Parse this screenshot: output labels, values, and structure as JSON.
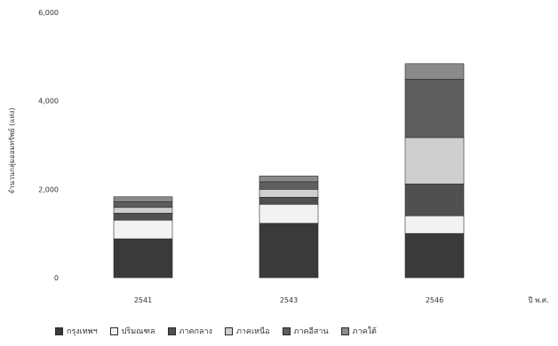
{
  "chart_data": {
    "type": "bar",
    "stacked": true,
    "categories": [
      "2541",
      "2543",
      "2546"
    ],
    "xlabel": "ปี พ.ศ.",
    "ylabel": "จำนวนกลุ่มออมทรัพย์ (แห่ง)",
    "ylim": [
      0,
      6000
    ],
    "yticks": [
      "0",
      "2,000",
      "4,000",
      "6,000"
    ],
    "grid": false,
    "legend_position": "bottom",
    "series": [
      {
        "name": "กรุงเทพฯ",
        "color": "#3a3a3a",
        "values": [
          880,
          1230,
          1000
        ]
      },
      {
        "name": "ปริมณฑล",
        "color": "#f2f2f2",
        "values": [
          420,
          430,
          400
        ]
      },
      {
        "name": "ภาคกลาง",
        "color": "#505050",
        "values": [
          160,
          160,
          720
        ]
      },
      {
        "name": "ภาคเหนือ",
        "color": "#cfcfcf",
        "values": [
          130,
          180,
          1050
        ]
      },
      {
        "name": "ภาคอีสาน",
        "color": "#5e5e5e",
        "values": [
          130,
          170,
          1320
        ]
      },
      {
        "name": "ภาคใต้",
        "color": "#8a8a8a",
        "values": [
          110,
          130,
          350
        ]
      }
    ]
  }
}
